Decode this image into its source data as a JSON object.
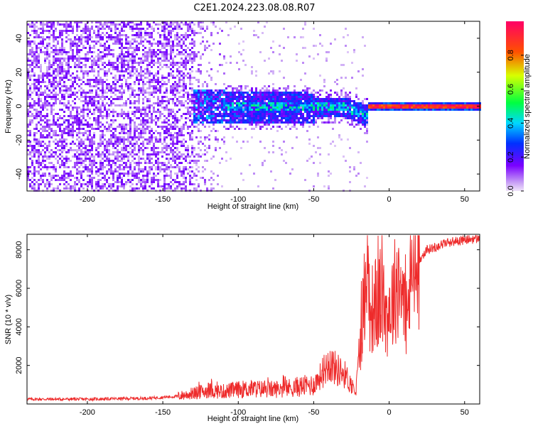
{
  "title": "C2E1.2024.223.08.08.R07",
  "chart_data": [
    {
      "type": "heatmap",
      "title": "C2E1.2024.223.08.08.R07",
      "xlabel": "Height of straight line (km)",
      "ylabel": "Frequency (Hz)",
      "xlim": [
        -240,
        60
      ],
      "ylim": [
        -50,
        50
      ],
      "x_ticks": [
        -200,
        -150,
        -100,
        -50,
        0,
        50
      ],
      "y_ticks": [
        -40,
        -20,
        0,
        20,
        40
      ],
      "colorbar": {
        "label": "Normalized spectral amplitude",
        "range": [
          0.0,
          1.0
        ],
        "ticks": [
          0.0,
          0.2,
          0.4,
          0.6,
          0.8
        ],
        "colormap": [
          "#e6d0f5",
          "#7a00ff",
          "#0030ff",
          "#00d8ff",
          "#00ff40",
          "#d8ff00",
          "#ff5000",
          "#ff0066"
        ]
      },
      "description_points": [
        {
          "height": -235,
          "freq_spread": 50,
          "amplitude": 0.1
        },
        {
          "height": -130,
          "freq_spread": 50,
          "amplitude": 0.1
        },
        {
          "height": -120,
          "freq_spread": 8,
          "amplitude": 0.3
        },
        {
          "height": -50,
          "freq_spread": 8,
          "amplitude": 0.35
        },
        {
          "height": -30,
          "freq_spread": 3,
          "amplitude": 0.55
        },
        {
          "height": -20,
          "freq_spread": -4,
          "amplitude": 0.5
        },
        {
          "height": -10,
          "freq_spread": 1,
          "amplitude": 0.9
        },
        {
          "height": 0,
          "freq_spread": 1,
          "amplitude": 0.9
        },
        {
          "height": 20,
          "freq_spread": 1,
          "amplitude": 0.9
        },
        {
          "height": 60,
          "freq_spread": 1,
          "amplitude": 0.9
        }
      ]
    },
    {
      "type": "line",
      "xlabel": "Height of straight line (km)",
      "ylabel": "SNR (10 * v/v)",
      "xlim": [
        -240,
        60
      ],
      "ylim": [
        0,
        8800
      ],
      "x_ticks": [
        -200,
        -150,
        -100,
        -50,
        0,
        50
      ],
      "y_ticks": [
        2000,
        4000,
        6000,
        8000
      ],
      "series": [
        {
          "name": "SNR",
          "color": "#ee2b2b",
          "x": [
            -240,
            -200,
            -160,
            -140,
            -130,
            -120,
            -110,
            -100,
            -90,
            -80,
            -70,
            -60,
            -50,
            -45,
            -40,
            -35,
            -30,
            -25,
            -22,
            -20,
            -17,
            -15,
            -12,
            -10,
            -8,
            -5,
            -2,
            0,
            3,
            5,
            8,
            10,
            12,
            15,
            20,
            25,
            30,
            35,
            40,
            45,
            50,
            55,
            60
          ],
          "y": [
            250,
            250,
            300,
            400,
            550,
            700,
            650,
            750,
            800,
            750,
            800,
            900,
            1000,
            1500,
            2200,
            1800,
            1600,
            1000,
            600,
            2500,
            5000,
            7500,
            4500,
            5500,
            4800,
            6000,
            4500,
            5000,
            5500,
            6500,
            6300,
            5000,
            4500,
            6800,
            7500,
            8000,
            8100,
            8300,
            8400,
            8450,
            8500,
            8550,
            8600
          ]
        }
      ]
    }
  ]
}
